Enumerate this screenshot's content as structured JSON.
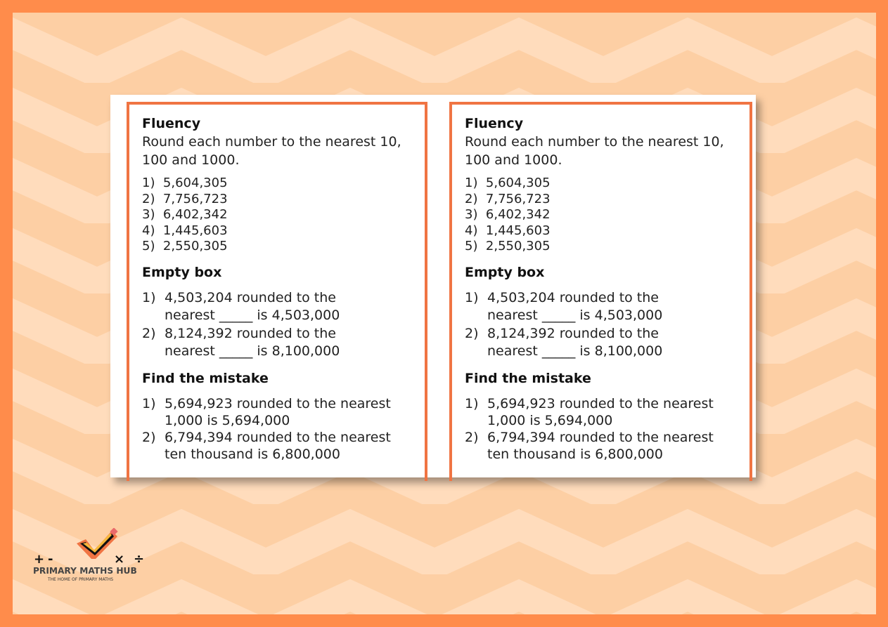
{
  "cards": [
    {
      "fluency": {
        "title": "Fluency",
        "instruction": "Round each number to the nearest 10, 100 and 1000.",
        "items": [
          "1)  5,604,305",
          "2)  7,756,723",
          "3)  6,402,342",
          "4)  1,445,603",
          "5)  2,550,305"
        ]
      },
      "empty_box": {
        "title": "Empty box",
        "items": [
          {
            "n": "1)",
            "text": "4,503,204 rounded to the nearest _____ is 4,503,000"
          },
          {
            "n": "2)",
            "text": "8,124,392 rounded to the nearest _____ is 8,100,000"
          }
        ]
      },
      "mistake": {
        "title": "Find the mistake",
        "items": [
          {
            "n": "1)",
            "text": "5,694,923 rounded to the nearest 1,000 is 5,694,000"
          },
          {
            "n": "2)",
            "text": "6,794,394 rounded to the nearest ten thousand is 6,800,000"
          }
        ]
      }
    },
    {
      "fluency": {
        "title": "Fluency",
        "instruction": "Round each number to the nearest 10, 100 and 1000.",
        "items": [
          "1)  5,604,305",
          "2)  7,756,723",
          "3)  6,402,342",
          "4)  1,445,603",
          "5)  2,550,305"
        ]
      },
      "empty_box": {
        "title": "Empty box",
        "items": [
          {
            "n": "1)",
            "text": "4,503,204 rounded to the nearest _____ is 4,503,000"
          },
          {
            "n": "2)",
            "text": "8,124,392 rounded to the nearest _____ is 8,100,000"
          }
        ]
      },
      "mistake": {
        "title": "Find the mistake",
        "items": [
          {
            "n": "1)",
            "text": "5,694,923 rounded to the nearest 1,000 is 5,694,000"
          },
          {
            "n": "2)",
            "text": "6,794,394 rounded to the nearest ten thousand is 6,800,000"
          }
        ]
      }
    }
  ],
  "logo": {
    "name": "PRIMARY MATHS HUB",
    "tagline": "THE HOME OF PRIMARY MATHS",
    "symbols": "+ - × ÷"
  },
  "colors": {
    "frame": "#FF8C4B",
    "background": "#FDCFA4",
    "card_border": "#F07443"
  }
}
